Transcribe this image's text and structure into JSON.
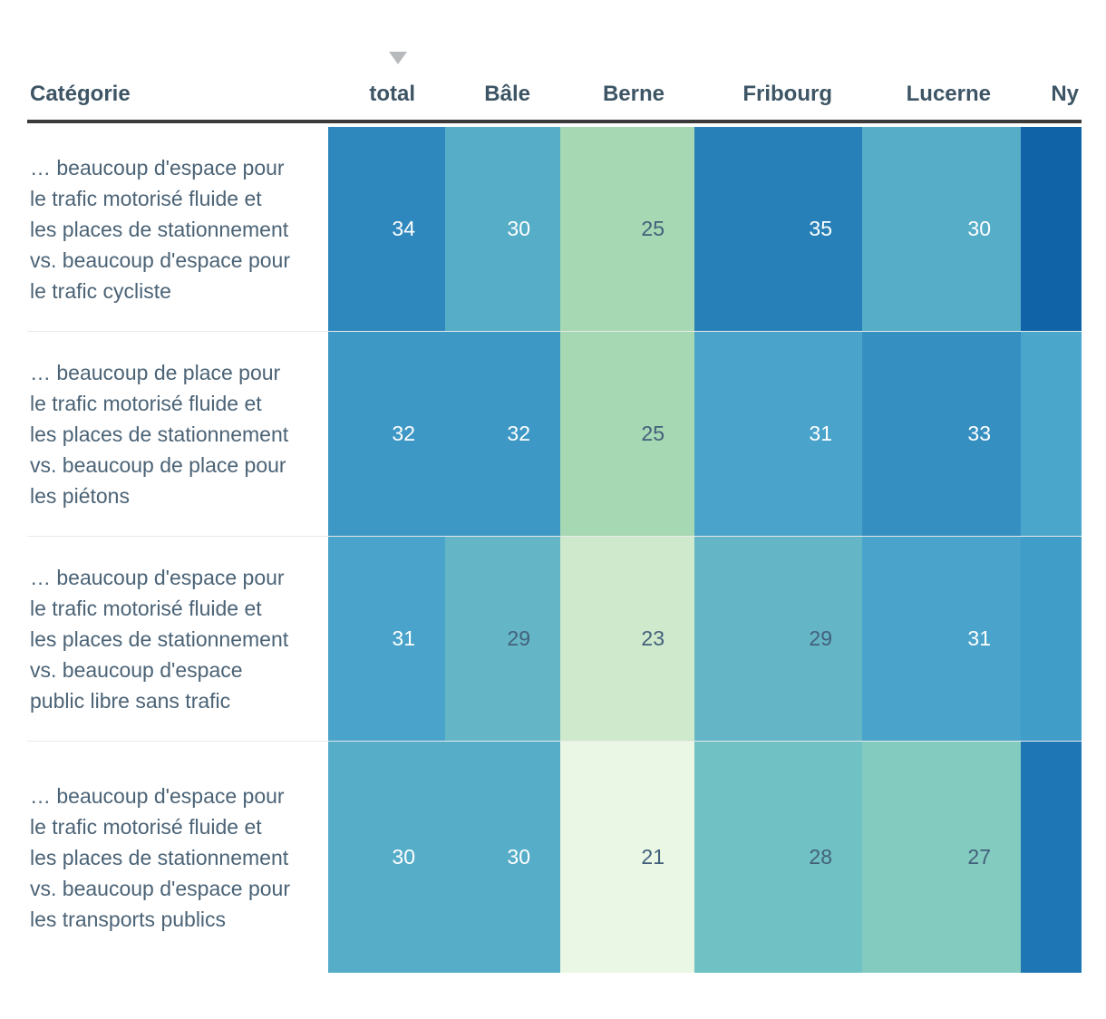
{
  "table": {
    "sort_indicator": {
      "column": "total",
      "direction": "down",
      "color": "#b7babd"
    },
    "columns": [
      {
        "key": "category",
        "label": "Catégorie"
      },
      {
        "key": "total",
        "label": "total"
      },
      {
        "key": "bale",
        "label": "Bâle"
      },
      {
        "key": "berne",
        "label": "Berne"
      },
      {
        "key": "fribourg",
        "label": "Fribourg"
      },
      {
        "key": "lucerne",
        "label": "Lucerne"
      },
      {
        "key": "ny",
        "label": "Ny"
      }
    ],
    "rows": [
      {
        "category": "… beaucoup d'espace pour le trafic motorisé fluide et les places de stationnement vs. beaucoup d'espace pour le trafic cycliste",
        "cells": [
          {
            "value": "34",
            "bg": "#2e87bd",
            "text": "#ffffff"
          },
          {
            "value": "30",
            "bg": "#55adc8",
            "text": "#ffffff"
          },
          {
            "value": "25",
            "bg": "#a6d8b3",
            "text": "#43607b"
          },
          {
            "value": "35",
            "bg": "#2781b8",
            "text": "#ffffff"
          },
          {
            "value": "30",
            "bg": "#55adc8",
            "text": "#ffffff"
          },
          {
            "value": "",
            "bg": "#1063a7",
            "text": "#ffffff"
          }
        ]
      },
      {
        "category": "… beaucoup de place pour le trafic motorisé fluide et les places de stationnement vs. beaucoup de place pour les piétons",
        "cells": [
          {
            "value": "32",
            "bg": "#3e98c5",
            "text": "#ffffff"
          },
          {
            "value": "32",
            "bg": "#3e98c5",
            "text": "#ffffff"
          },
          {
            "value": "25",
            "bg": "#a6d8b3",
            "text": "#43607b"
          },
          {
            "value": "31",
            "bg": "#49a3ca",
            "text": "#ffffff"
          },
          {
            "value": "33",
            "bg": "#3590c1",
            "text": "#ffffff"
          },
          {
            "value": "",
            "bg": "#4ba6cb",
            "text": "#ffffff"
          }
        ]
      },
      {
        "category": "… beaucoup d'espace pour le trafic motorisé fluide et les places de stationnement vs. beaucoup d'espace public libre sans trafic",
        "cells": [
          {
            "value": "31",
            "bg": "#49a3ca",
            "text": "#ffffff"
          },
          {
            "value": "29",
            "bg": "#64b6c6",
            "text": "#43607b"
          },
          {
            "value": "23",
            "bg": "#cfe9cc",
            "text": "#43607b"
          },
          {
            "value": "29",
            "bg": "#64b6c6",
            "text": "#43607b"
          },
          {
            "value": "31",
            "bg": "#49a3ca",
            "text": "#ffffff"
          },
          {
            "value": "",
            "bg": "#3f9dc7",
            "text": "#ffffff"
          }
        ]
      },
      {
        "category": "… beaucoup d'espace pour le trafic motorisé fluide et les places de stationnement vs. beaucoup d'espace pour les transports publics",
        "cells": [
          {
            "value": "30",
            "bg": "#55adc8",
            "text": "#ffffff"
          },
          {
            "value": "30",
            "bg": "#55adc8",
            "text": "#ffffff"
          },
          {
            "value": "21",
            "bg": "#ebf7e5",
            "text": "#43607b"
          },
          {
            "value": "28",
            "bg": "#6fc1c3",
            "text": "#43607b"
          },
          {
            "value": "27",
            "bg": "#83cbbf",
            "text": "#43607b"
          },
          {
            "value": "",
            "bg": "#1e76b4",
            "text": "#ffffff"
          }
        ]
      }
    ]
  },
  "chart_data": {
    "type": "heatmap",
    "title": "",
    "columns": [
      "total",
      "Bâle",
      "Berne",
      "Fribourg",
      "Lucerne",
      "Ny"
    ],
    "rows": [
      "… beaucoup d'espace pour le trafic motorisé fluide et les places de stationnement vs. beaucoup d'espace pour le trafic cycliste",
      "… beaucoup de place pour le trafic motorisé fluide et les places de stationnement vs. beaucoup de place pour les piétons",
      "… beaucoup d'espace pour le trafic motorisé fluide et les places de stationnement vs. beaucoup d'espace public libre sans trafic",
      "… beaucoup d'espace pour le trafic motorisé fluide et les places de stationnement vs. beaucoup d'espace pour les transports publics"
    ],
    "values": [
      [
        34,
        30,
        25,
        35,
        30,
        null
      ],
      [
        32,
        32,
        25,
        31,
        33,
        null
      ],
      [
        31,
        29,
        23,
        29,
        31,
        null
      ],
      [
        30,
        30,
        21,
        28,
        27,
        null
      ]
    ],
    "sorted_by": "total",
    "color_scale": {
      "21": "#ebf7e5",
      "23": "#cfe9cc",
      "25": "#a6d8b3",
      "27": "#83cbbf",
      "28": "#6fc1c3",
      "29": "#64b6c6",
      "30": "#55adc8",
      "31": "#49a3ca",
      "32": "#3e98c5",
      "33": "#3590c1",
      "34": "#2e87bd",
      "35": "#2781b8"
    }
  }
}
